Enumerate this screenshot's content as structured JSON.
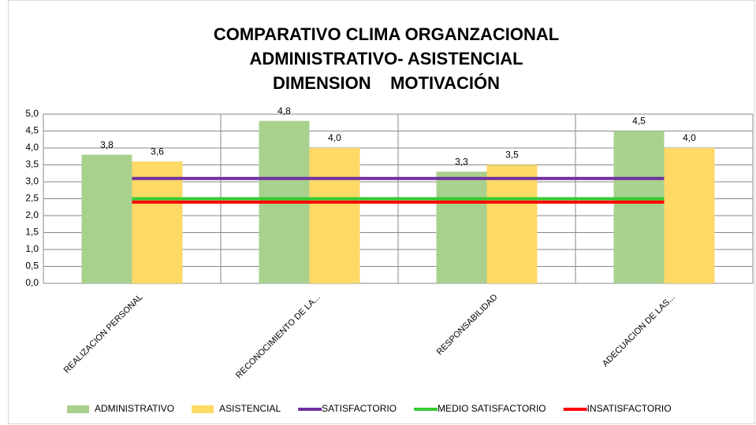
{
  "chart_data": {
    "type": "bar",
    "title": [
      "COMPARATIVO CLIMA ORGANZACIONAL",
      "ADMINISTRATIVO- ASISTENCIAL",
      "DIMENSION    MOTIVACIÓN"
    ],
    "categories": [
      "REALIZACION PERSONAL",
      "RECONOCIMIENTO DE LA...",
      "RESPONSABILIDAD",
      "ADECUACION DE LAS..."
    ],
    "series": [
      {
        "name": "ADMINISTRATIVO",
        "type": "bar",
        "color": "#a9d18e",
        "values": [
          3.8,
          4.8,
          3.3,
          4.5
        ],
        "value_labels": [
          "3,8",
          "4,8",
          "3,3",
          "4,5"
        ]
      },
      {
        "name": "ASISTENCIAL",
        "type": "bar",
        "color": "#ffd966",
        "values": [
          3.6,
          4.0,
          3.5,
          4.0
        ],
        "value_labels": [
          "3,6",
          "4,0",
          "3,5",
          "4,0"
        ]
      },
      {
        "name": "SATISFACTORIO",
        "type": "line",
        "color": "#7030a0",
        "values": [
          3.1,
          3.1,
          3.1,
          3.1
        ]
      },
      {
        "name": "MEDIO SATISFACTORIO",
        "type": "line",
        "color": "#33cc33",
        "values": [
          2.5,
          2.5,
          2.5,
          2.5
        ]
      },
      {
        "name": "INSATISFACTORIO",
        "type": "line",
        "color": "#ff0000",
        "values": [
          2.4,
          2.4,
          2.4,
          2.4
        ]
      }
    ],
    "ylim": [
      0,
      5
    ],
    "yticks": [
      {
        "value": 0,
        "label": "0,0"
      },
      {
        "value": 0.5,
        "label": "0,5"
      },
      {
        "value": 1,
        "label": "1,0"
      },
      {
        "value": 1.5,
        "label": "1,5"
      },
      {
        "value": 2,
        "label": "2,0"
      },
      {
        "value": 2.5,
        "label": "2,5"
      },
      {
        "value": 3,
        "label": "3,0"
      },
      {
        "value": 3.5,
        "label": "3,5"
      },
      {
        "value": 4,
        "label": "4,0"
      },
      {
        "value": 4.5,
        "label": "4,5"
      },
      {
        "value": 5,
        "label": "5,0"
      }
    ],
    "grid": true,
    "legend": "bottom"
  }
}
